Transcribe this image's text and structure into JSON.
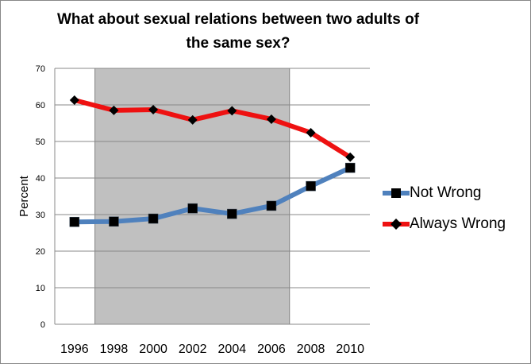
{
  "chart_data": {
    "type": "line",
    "title_line1": "What about sexual relations between two adults of",
    "title_line2": "the same sex?",
    "xlabel": "",
    "ylabel": "Percent",
    "ylim": [
      0,
      70
    ],
    "yticks": [
      "0",
      "10",
      "20",
      "30",
      "40",
      "50",
      "60",
      "70"
    ],
    "categories": [
      "1996",
      "1998",
      "2000",
      "2002",
      "2004",
      "2006",
      "2008",
      "2010"
    ],
    "shaded_range": [
      "1998",
      "2006"
    ],
    "grid": true,
    "legend_position": "right",
    "series": [
      {
        "name": "Not Wrong",
        "color": "#4f81bd",
        "marker": "square",
        "values": [
          28.0,
          28.1,
          28.9,
          31.7,
          30.2,
          32.4,
          37.8,
          42.8
        ]
      },
      {
        "name": "Always Wrong",
        "color": "#ee1111",
        "marker": "diamond",
        "values": [
          61.3,
          58.5,
          58.7,
          55.9,
          58.4,
          56.1,
          52.4,
          45.7
        ]
      }
    ]
  }
}
